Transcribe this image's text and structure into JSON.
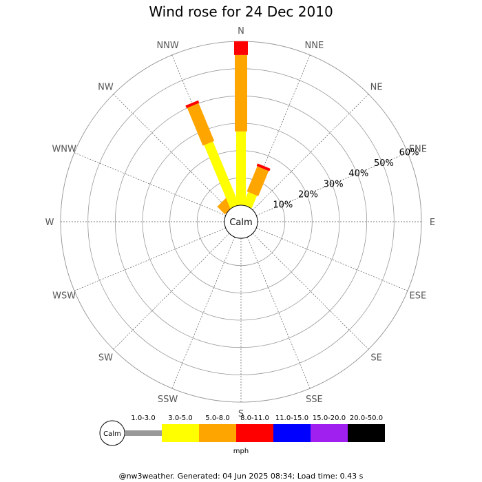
{
  "chart_data": {
    "type": "wind-rose",
    "title": "Wind rose for 24 Dec 2010",
    "directions": [
      "N",
      "NNE",
      "NE",
      "ENE",
      "E",
      "ESE",
      "SE",
      "SSE",
      "S",
      "SSW",
      "SW",
      "WSW",
      "W",
      "WNW",
      "NW",
      "NNW"
    ],
    "percent_ticks": [
      "10%",
      "20%",
      "30%",
      "40%",
      "50%",
      "60%"
    ],
    "rmax": 60,
    "calm_label": "Calm",
    "speed_bins": [
      {
        "label": "1.0-3.0",
        "color": "#999999"
      },
      {
        "label": "3.0-5.0",
        "color": "#ffff00"
      },
      {
        "label": "5.0-8.0",
        "color": "#ffa500"
      },
      {
        "label": "8.0-11.0",
        "color": "#ff0000"
      },
      {
        "label": "11.0-15.0",
        "color": "#0000ff"
      },
      {
        "label": "15.0-20.0",
        "color": "#a020f0"
      },
      {
        "label": "20.0-50.0",
        "color": "#000000"
      }
    ],
    "unit": "mph",
    "series": [
      {
        "direction": "N",
        "cumulative": [
          0,
          27,
          55,
          60
        ]
      },
      {
        "direction": "NNE",
        "cumulative": [
          0,
          5,
          15,
          16
        ]
      },
      {
        "direction": "NW",
        "cumulative": [
          0,
          0,
          4,
          4
        ]
      },
      {
        "direction": "NNW",
        "cumulative": [
          0,
          25,
          40,
          41
        ]
      }
    ]
  },
  "footer": "@nw3weather. Generated: 04 Jun 2025 08:34; Load time: 0.43 s"
}
